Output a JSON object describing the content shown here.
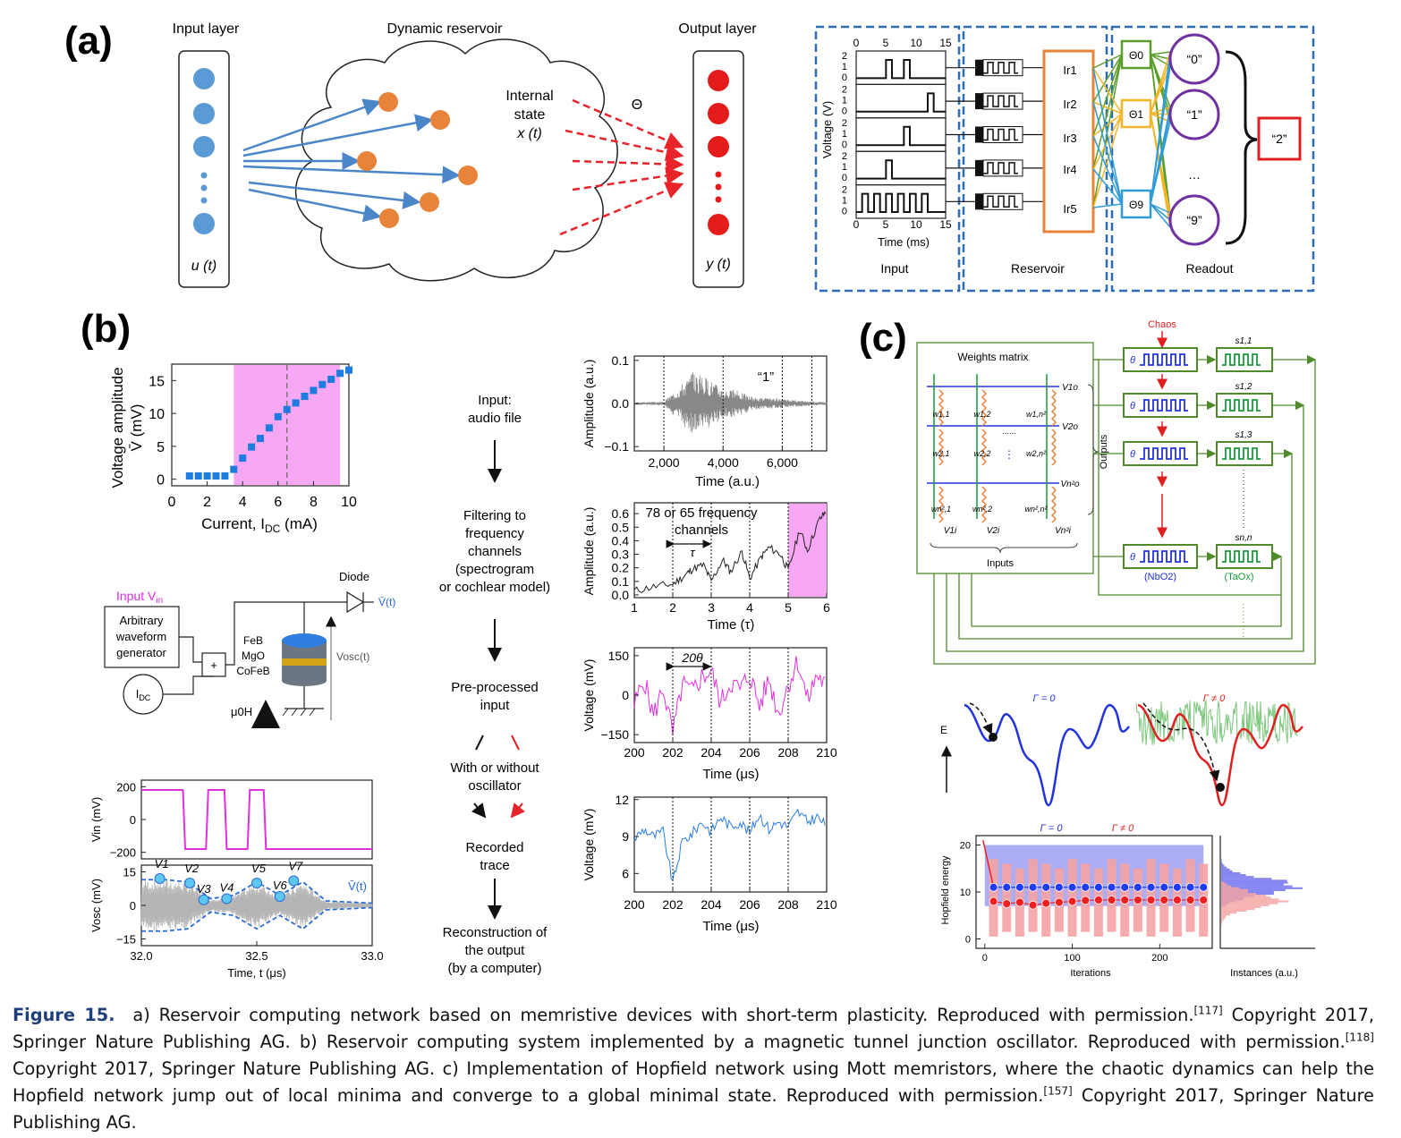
{
  "panel_labels": {
    "a": "(a)",
    "b": "(b)",
    "c": "(c)"
  },
  "panel_a": {
    "left": {
      "input_layer": "Input layer",
      "reservoir": "Dynamic reservoir",
      "output_layer": "Output layer",
      "internal_state_1": "Internal",
      "internal_state_2": "state",
      "internal_state_3": "x (t)",
      "theta": "Θ",
      "u_label": "u (t)",
      "y_label": "y (t)"
    },
    "right": {
      "axis_ticks": [
        "0",
        "5",
        "10",
        "15"
      ],
      "y_ticks": [
        "2",
        "1",
        "0"
      ],
      "ylabel": "Voltage (V)",
      "xlabel": "Time (ms)",
      "reservoir_nodes": [
        "Ir1",
        "Ir2",
        "Ir3",
        "Ir4",
        "Ir5"
      ],
      "readout_thetas": [
        "Θ0",
        "Θ1",
        "Θ9"
      ],
      "outputs": [
        "“0”",
        "“1”",
        "…",
        "“9”"
      ],
      "result": "“2”",
      "box_input": "Input",
      "box_reservoir": "Reservoir",
      "box_readout": "Readout"
    }
  },
  "panel_b": {
    "chart1": {
      "ylabel_1": "Voltage amplitude",
      "ylabel_2": "V̄ (mV)",
      "xlabel": "Current, I",
      "xlabel_sub": "DC",
      "xlabel_unit": " (mA)",
      "x_ticks": [
        "0",
        "2",
        "4",
        "6",
        "8",
        "10"
      ],
      "y_ticks": [
        "0",
        "5",
        "10",
        "15"
      ]
    },
    "circuit": {
      "input": "Input V",
      "input_sub": "in",
      "generator_1": "Arbitrary",
      "generator_2": "waveform",
      "generator_3": "generator",
      "plus": "+",
      "idc": "I",
      "idc_sub": "DC",
      "diode": "Diode",
      "vt": "V̄(t)",
      "layers": [
        "FeB",
        "MgO",
        "CoFeB"
      ],
      "field": "μ0H",
      "vosc": "Vosc(t)"
    },
    "chart_vin": {
      "ylabel": "Vin (mV)",
      "y_ticks": [
        "200",
        "0",
        "−200"
      ]
    },
    "chart_vosc": {
      "ylabel": "Vosc (mV)",
      "y_ticks": [
        "15",
        "0",
        "−15"
      ],
      "x_ticks": [
        "32.0",
        "32.5",
        "33.0"
      ],
      "xlabel": "Time, t (μs)",
      "markers": [
        "V1",
        "V2",
        "V3",
        "V4",
        "V5",
        "V6",
        "V7"
      ],
      "vt": "V̄(t)"
    },
    "flow": [
      [
        "Input:",
        "audio file"
      ],
      [
        "Filtering to",
        "frequency",
        "channels",
        "(spectrogram",
        "or cochlear model)"
      ],
      [
        "Pre-processed",
        "input"
      ],
      [
        "With or without",
        "oscillator"
      ],
      [
        "Recorded",
        "trace"
      ],
      [
        "Reconstruction of",
        "the output",
        "(by a computer)"
      ]
    ],
    "audio": {
      "ylabel": "Amplitude (a.u.)",
      "xlabel": "Time (a.u.)",
      "x_ticks": [
        "2,000",
        "4,000",
        "6,000"
      ],
      "y_ticks": [
        "0.1",
        "0.0",
        "−0.1"
      ],
      "digit": "“1”"
    },
    "spectro": {
      "ylabel": "Amplitude (a.u.)",
      "xlabel": "Time (τ)",
      "x_ticks": [
        "1",
        "2",
        "3",
        "4",
        "5",
        "6"
      ],
      "y_ticks": [
        "0.6",
        "0.5",
        "0.4",
        "0.3",
        "0.2",
        "0.1",
        "0.0"
      ],
      "annotation_1": "78 or 65 frequency",
      "annotation_2": "channels",
      "tau": "τ"
    },
    "preproc": {
      "ylabel": "Voltage (mV)",
      "xlabel": "Time (μs)",
      "x_ticks": [
        "200",
        "202",
        "204",
        "206",
        "208",
        "210"
      ],
      "y_ticks": [
        "150",
        "0",
        "−150"
      ],
      "annotation": "20θ"
    },
    "recorded": {
      "ylabel": "Voltage (mV)",
      "xlabel": "Time (μs)",
      "x_ticks": [
        "200",
        "202",
        "204",
        "206",
        "208",
        "210"
      ],
      "y_ticks": [
        "12",
        "9",
        "6"
      ]
    }
  },
  "panel_c": {
    "chaos": "Chaos",
    "weights_matrix": "Weights matrix",
    "outputs_label": "Outputs",
    "inputs_label": "Inputs",
    "v_out": [
      "V1o",
      "V2o",
      "Vn²o"
    ],
    "v_in": [
      "V1i",
      "V2i",
      "Vn²i"
    ],
    "weights": [
      "w1,1",
      "w1,2",
      "w1,n²",
      "w2,1",
      "w2,2",
      "w2,n²",
      "wn²,1",
      "wn²,2",
      "wn²,n²"
    ],
    "s_labels": [
      "s1,1",
      "s1,2",
      "s1,3",
      "sn,n"
    ],
    "theta": "θ",
    "nbo2": "(NbO2)",
    "taox": "(TaOx)",
    "energy_axis": "E",
    "gamma0": "Γ = 0",
    "gamma_ne": "Γ ≠ 0",
    "hopfield": {
      "ylabel": "Hopfield energy",
      "xlabel": "Iterations",
      "x_ticks": [
        "0",
        "100",
        "200"
      ],
      "y_ticks": [
        "20",
        "10",
        "0"
      ],
      "hist_xlabel": "Instances (a.u.)",
      "gamma0": "Γ = 0",
      "gamma_ne": "Γ ≠ 0"
    }
  },
  "caption": {
    "figure_label": "Figure 15.",
    "text_a": "a) Reservoir computing network based on memristive devices with short-term plasticity. Reproduced with permission.",
    "ref_a": "[117]",
    "text_b": "Copyright 2017, Springer Nature Publishing AG. b) Reservoir computing system implemented by a magnetic tunnel junction oscillator. Reproduced with permission.",
    "ref_b": "[118]",
    "text_c": "Copyright 2017, Springer Nature Publishing AG. c) Implementation of Hopfield network using Mott memristors, where the chaotic dynamics can help the Hopfield network jump out of local minima and converge to a global minimal state. Reproduced with permission.",
    "ref_c": "[157]",
    "text_end": "Copyright 2017, Springer Nature Publishing AG."
  },
  "chart_data": [
    {
      "type": "scatter",
      "xlabel": "Current, IDC (mA)",
      "ylabel": "Voltage amplitude V̄ (mV)",
      "x": [
        1.0,
        1.5,
        2.0,
        2.5,
        3.0,
        3.5,
        4.0,
        4.5,
        5.0,
        5.5,
        6.0,
        6.5,
        7.0,
        7.5,
        8.0,
        8.5,
        9.0,
        9.5,
        10.0
      ],
      "y": [
        0.5,
        0.5,
        0.5,
        0.5,
        0.5,
        1.5,
        3.2,
        4.9,
        6.2,
        7.8,
        9.5,
        10.6,
        11.6,
        12.6,
        13.5,
        14.4,
        15.2,
        16.1,
        16.6
      ],
      "xlim": [
        0,
        10
      ],
      "ylim": [
        -1,
        17.5
      ],
      "highlight_range": [
        3.5,
        9.5
      ],
      "dashed_x": 6.5,
      "color": "#1e7be0",
      "highlight_color": "#f7a8f4"
    },
    {
      "type": "line",
      "title": "",
      "ylabel": "Vin (mV)",
      "x": [
        32.0,
        32.18,
        32.19,
        32.28,
        32.29,
        32.36,
        32.37,
        32.46,
        32.47,
        32.53,
        32.54,
        32.63,
        32.64,
        33.0
      ],
      "y": [
        180,
        180,
        -180,
        -180,
        180,
        180,
        -180,
        -180,
        180,
        180,
        -180,
        -180,
        -180,
        -180
      ],
      "ylim": [
        -240,
        240
      ],
      "color": "#e22fe0"
    },
    {
      "type": "line",
      "ylabel": "Vosc (mV)",
      "xlabel": "Time, t (μs)",
      "x": [
        32.0,
        32.1,
        32.2,
        32.3,
        32.4,
        32.5,
        32.6,
        32.7,
        32.8,
        33.0
      ],
      "envelope": [
        11.5,
        11.5,
        10.5,
        3.0,
        4.5,
        10.5,
        4.5,
        10.5,
        2.0,
        1.0
      ],
      "markers_x": [
        32.08,
        32.21,
        32.27,
        32.37,
        32.5,
        32.6,
        32.66
      ],
      "markers_y": [
        12,
        10,
        2.5,
        3,
        10,
        4,
        11
      ],
      "xlim": [
        32.0,
        33.0
      ],
      "ylim": [
        -18,
        18
      ],
      "color": "#2b6bd6"
    },
    {
      "type": "line",
      "ylabel": "Amplitude (a.u.)",
      "xlabel": "Time (a.u.)",
      "xlim": [
        1000,
        7500
      ],
      "ylim": [
        -0.11,
        0.11
      ],
      "dotted_x": [
        2000,
        4000,
        6000
      ],
      "envelope_x": [
        1000,
        2000,
        2500,
        3000,
        3500,
        4000,
        4500,
        5000,
        6000,
        7000,
        7500
      ],
      "envelope_y": [
        0.003,
        0.004,
        0.04,
        0.075,
        0.06,
        0.035,
        0.03,
        0.015,
        0.01,
        0.005,
        0.003
      ],
      "color": "#888888"
    },
    {
      "type": "line",
      "ylabel": "Amplitude (a.u.)",
      "xlabel": "Time (τ)",
      "xlim": [
        1,
        6
      ],
      "ylim": [
        -0.02,
        0.68
      ],
      "highlight_range": [
        5,
        6
      ],
      "dotted_x": [
        2,
        3,
        4,
        5
      ],
      "x": [
        1.0,
        1.5,
        2.0,
        2.3,
        2.5,
        2.8,
        3.0,
        3.3,
        3.5,
        3.8,
        4.0,
        4.3,
        4.5,
        4.8,
        5.0,
        5.3,
        5.5,
        5.8,
        6.0
      ],
      "y": [
        0.03,
        0.06,
        0.08,
        0.14,
        0.19,
        0.22,
        0.1,
        0.26,
        0.17,
        0.32,
        0.12,
        0.28,
        0.35,
        0.3,
        0.18,
        0.48,
        0.33,
        0.55,
        0.62
      ],
      "color": "#222222",
      "highlight_color": "#f7a8f4"
    },
    {
      "type": "line",
      "ylabel": "Voltage (mV)",
      "xlabel": "Time (μs)",
      "xlim": [
        200,
        210
      ],
      "ylim": [
        -180,
        180
      ],
      "dotted_x": [
        202,
        204,
        206,
        208
      ],
      "x": [
        200,
        200.5,
        201,
        201.5,
        202,
        202.5,
        203,
        203.5,
        204,
        204.5,
        205,
        205.5,
        206,
        206.5,
        207,
        207.5,
        208,
        208.5,
        209,
        209.5,
        210
      ],
      "y": [
        -40,
        60,
        -80,
        30,
        -150,
        40,
        10,
        70,
        90,
        -30,
        50,
        20,
        80,
        -40,
        60,
        -70,
        40,
        130,
        -20,
        80,
        30
      ],
      "color": "#e22fe0"
    },
    {
      "type": "line",
      "ylabel": "Voltage (mV)",
      "xlabel": "Time (μs)",
      "xlim": [
        200,
        210
      ],
      "ylim": [
        4.5,
        12.2
      ],
      "dotted_x": [
        202,
        204,
        206,
        208
      ],
      "x": [
        200,
        200.5,
        201,
        201.5,
        202,
        202.5,
        203,
        203.5,
        204,
        204.5,
        205,
        205.5,
        206,
        206.5,
        207,
        207.5,
        208,
        208.5,
        209,
        209.5,
        210
      ],
      "y": [
        8.8,
        9.6,
        9.0,
        9.4,
        5.2,
        8.6,
        9.2,
        10.2,
        9.4,
        10.6,
        9.8,
        10.2,
        9.3,
        10.8,
        9.6,
        10.2,
        9.8,
        11.0,
        10.2,
        10.6,
        9.8
      ],
      "color": "#2b7de0"
    },
    {
      "type": "scatter",
      "ylabel": "Hopfield energy",
      "xlabel": "Iterations",
      "xlim": [
        -10,
        260
      ],
      "ylim": [
        -2,
        22
      ],
      "series": [
        {
          "name": "Γ = 0",
          "x": [
            10,
            25,
            40,
            55,
            70,
            85,
            100,
            115,
            130,
            145,
            160,
            175,
            190,
            205,
            220,
            235,
            250
          ],
          "y": [
            11,
            11,
            11,
            11,
            11,
            11,
            11,
            11,
            11,
            11,
            11,
            11,
            11,
            11,
            11,
            11,
            11
          ]
        },
        {
          "name": "Γ ≠ 0",
          "x": [
            10,
            25,
            40,
            55,
            70,
            85,
            100,
            115,
            130,
            145,
            160,
            175,
            190,
            205,
            220,
            235,
            250
          ],
          "y": [
            8,
            7.5,
            7.8,
            7.2,
            7.6,
            7.8,
            8,
            8.2,
            8.3,
            8.3,
            8.3,
            8.3,
            8.3,
            8.3,
            8.3,
            8.3,
            8.3
          ]
        }
      ],
      "colors": [
        "#1f3cf0",
        "#f02020"
      ]
    }
  ]
}
